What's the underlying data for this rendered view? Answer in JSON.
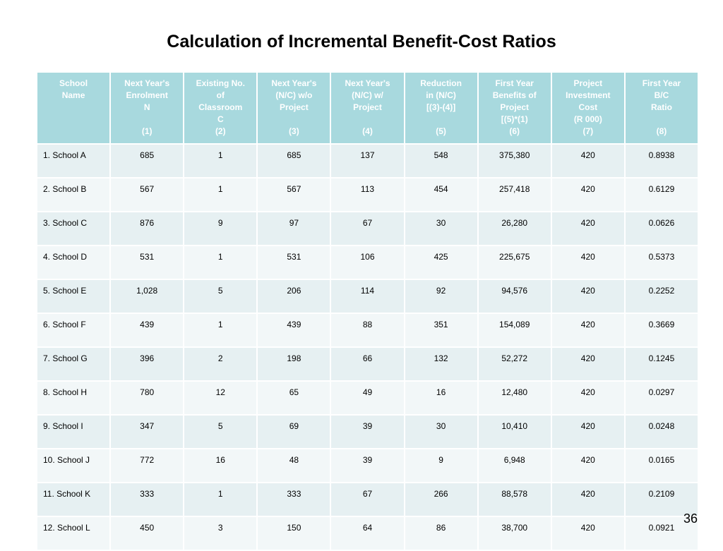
{
  "slide": {
    "title": "Calculation of Incremental Benefit-Cost Ratios",
    "page_number": "36"
  },
  "table": {
    "headers": [
      {
        "lines": [
          "School",
          "Name"
        ],
        "number": ""
      },
      {
        "lines": [
          "Next Year's",
          "Enrolment",
          "N"
        ],
        "number": "(1)"
      },
      {
        "lines": [
          "Existing No.",
          "of",
          "Classroom",
          "C"
        ],
        "number": "(2)"
      },
      {
        "lines": [
          "Next Year's",
          "(N/C) w/o",
          "Project"
        ],
        "number": "(3)"
      },
      {
        "lines": [
          "Next Year's",
          "(N/C) w/",
          "Project"
        ],
        "number": "(4)"
      },
      {
        "lines": [
          "Reduction",
          "in (N/C)",
          "[(3)-(4)]"
        ],
        "number": "(5)"
      },
      {
        "lines": [
          "First Year",
          "Benefits of",
          "Project",
          "[(5)*(1)"
        ],
        "number": "(6)"
      },
      {
        "lines": [
          "Project",
          "Investment",
          "Cost",
          "(R 000)"
        ],
        "number": "(7)"
      },
      {
        "lines": [
          "First Year",
          "B/C",
          "Ratio"
        ],
        "number": "(8)"
      }
    ],
    "rows": [
      [
        "1. School A",
        "685",
        "1",
        "685",
        "137",
        "548",
        "375,380",
        "420",
        "0.8938"
      ],
      [
        "2. School B",
        "567",
        "1",
        "567",
        "113",
        "454",
        "257,418",
        "420",
        "0.6129"
      ],
      [
        "3. School C",
        "876",
        "9",
        "97",
        "67",
        "30",
        "26,280",
        "420",
        "0.0626"
      ],
      [
        "4. School D",
        "531",
        "1",
        "531",
        "106",
        "425",
        "225,675",
        "420",
        "0.5373"
      ],
      [
        "5. School E",
        "1,028",
        "5",
        "206",
        "114",
        "92",
        "94,576",
        "420",
        "0.2252"
      ],
      [
        "6. School F",
        "439",
        "1",
        "439",
        "88",
        "351",
        "154,089",
        "420",
        "0.3669"
      ],
      [
        "7. School G",
        "396",
        "2",
        "198",
        "66",
        "132",
        "52,272",
        "420",
        "0.1245"
      ],
      [
        "8. School H",
        "780",
        "12",
        "65",
        "49",
        "16",
        "12,480",
        "420",
        "0.0297"
      ],
      [
        "9. School I",
        "347",
        "5",
        "69",
        "39",
        "30",
        "10,410",
        "420",
        "0.0248"
      ],
      [
        "10. School J",
        "772",
        "16",
        "48",
        "39",
        "9",
        "6,948",
        "420",
        "0.0165"
      ],
      [
        "11. School K",
        "333",
        "1",
        "333",
        "67",
        "266",
        "88,578",
        "420",
        "0.2109"
      ],
      [
        "12. School L",
        "450",
        "3",
        "150",
        "64",
        "86",
        "38,700",
        "420",
        "0.0921"
      ]
    ]
  }
}
